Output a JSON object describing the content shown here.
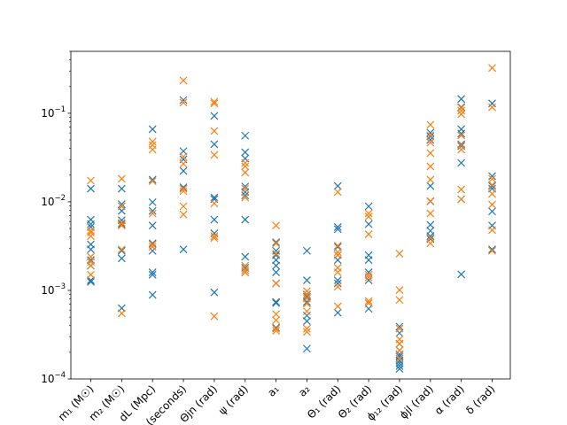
{
  "chart_data": {
    "type": "scatter",
    "marker": "x",
    "yscale": "log",
    "ylim": [
      0.0001,
      0.5
    ],
    "yticks": [
      {
        "value": 0.0001,
        "base": "10",
        "exp": "−4"
      },
      {
        "value": 0.001,
        "base": "10",
        "exp": "−3"
      },
      {
        "value": 0.01,
        "base": "10",
        "exp": "−2"
      },
      {
        "value": 0.1,
        "base": "10",
        "exp": "−1"
      }
    ],
    "categories": [
      "m₁ (M☉)",
      "m₂ (M☉)",
      "dL (Mpc)",
      "t (seconds)",
      "Θjn (rad)",
      "ψ (rad)",
      "a₁",
      "a₂",
      "Θ₁ (rad)",
      "Θ₂ (rad)",
      "ϕ₁₂ (rad)",
      "ϕjl (rad)",
      "α (rad)",
      "δ (rad)"
    ],
    "series": [
      {
        "color": "#1f77b4",
        "values": [
          [
            0.0141,
            0.0063,
            0.0056,
            0.0052,
            0.0033,
            0.0029,
            0.0022,
            0.0019,
            0.0013,
            0.00125
          ],
          [
            0.0141,
            0.0094,
            0.0089,
            0.0079,
            0.0062,
            0.0056,
            0.0028,
            0.0023,
            0.00063
          ],
          [
            0.0661,
            0.0178,
            0.0099,
            0.0079,
            0.0054,
            0.0034,
            0.0028,
            0.0016,
            0.0015,
            0.00089
          ],
          [
            0.141,
            0.0373,
            0.0302,
            0.0223,
            0.0146,
            0.0141,
            0.0029
          ],
          [
            0.0933,
            0.0447,
            0.0112,
            0.0107,
            0.0063,
            0.0044,
            0.00095
          ],
          [
            0.0558,
            0.0363,
            0.0309,
            0.0149,
            0.0129,
            0.0118,
            0.0063,
            0.0024,
            0.0018,
            0.0016
          ],
          [
            0.0035,
            0.0028,
            0.0025,
            0.0022,
            0.0019,
            0.0016,
            0.0012,
            0.00074,
            0.00072,
            0.00038
          ],
          [
            0.0028,
            0.0013,
            0.0009,
            0.00085,
            0.00074,
            0.00052,
            0.00045,
            0.00022
          ],
          [
            0.0151,
            0.0052,
            0.0049,
            0.0031,
            0.0025,
            0.0022,
            0.0013,
            0.0012,
            0.00056
          ],
          [
            0.0089,
            0.0056,
            0.0025,
            0.0022,
            0.0016,
            0.0013,
            0.00072,
            0.00062
          ],
          [
            0.00039,
            0.00033,
            0.00025,
            0.00021,
            0.00019,
            0.00018,
            0.00017,
            0.00016,
            0.00015,
            0.00014,
            0.00013
          ],
          [
            0.0603,
            0.0547,
            0.0501,
            0.0151,
            0.0101,
            0.0055,
            0.0047,
            0.0041,
            0.0038
          ],
          [
            0.145,
            0.117,
            0.0661,
            0.0589,
            0.0447,
            0.0427,
            0.0275,
            0.0107,
            0.00152
          ],
          [
            0.129,
            0.0195,
            0.0151,
            0.0141,
            0.0078,
            0.0054,
            0.0029
          ]
        ]
      },
      {
        "color": "#ff7f0e",
        "values": [
          [
            0.0174,
            0.0047,
            0.0045,
            0.0041,
            0.0024,
            0.0021,
            0.0019,
            0.0015
          ],
          [
            0.0182,
            0.0089,
            0.0058,
            0.0054,
            0.0029,
            0.00055
          ],
          [
            0.0478,
            0.0437,
            0.0389,
            0.0171,
            0.0074,
            0.0033,
            0.0031
          ],
          [
            0.234,
            0.132,
            0.0324,
            0.0269,
            0.0141,
            0.0132,
            0.0089,
            0.0072
          ],
          [
            0.135,
            0.129,
            0.0631,
            0.0339,
            0.0096,
            0.0041,
            0.0039,
            0.00051
          ],
          [
            0.0275,
            0.0251,
            0.0214,
            0.0141,
            0.0112,
            0.0019,
            0.0017,
            0.0016
          ],
          [
            0.0054,
            0.0034,
            0.0026,
            0.0012,
            0.00054,
            0.00046,
            0.00037,
            0.00035
          ],
          [
            0.00098,
            0.00089,
            0.00081,
            0.00071,
            0.00058,
            0.00037,
            0.00034
          ],
          [
            0.0129,
            0.0032,
            0.0027,
            0.0025,
            0.0018,
            0.0016,
            0.0011,
            0.00066
          ],
          [
            0.0074,
            0.0068,
            0.0043,
            0.0015,
            0.0014,
            0.00076,
            0.00072
          ],
          [
            0.0026,
            0.00101,
            0.00078,
            0.00037,
            0.00028,
            0.00025,
            0.00021,
            0.00017
          ],
          [
            0.0741,
            0.0562,
            0.0468,
            0.0355,
            0.0251,
            0.0178,
            0.0102,
            0.0074,
            0.0039,
            0.0034
          ],
          [
            0.115,
            0.107,
            0.0977,
            0.0562,
            0.0437,
            0.0389,
            0.0138,
            0.0107
          ],
          [
            0.324,
            0.117,
            0.0182,
            0.0155,
            0.0123,
            0.0093,
            0.0048,
            0.0028
          ]
        ]
      }
    ]
  }
}
